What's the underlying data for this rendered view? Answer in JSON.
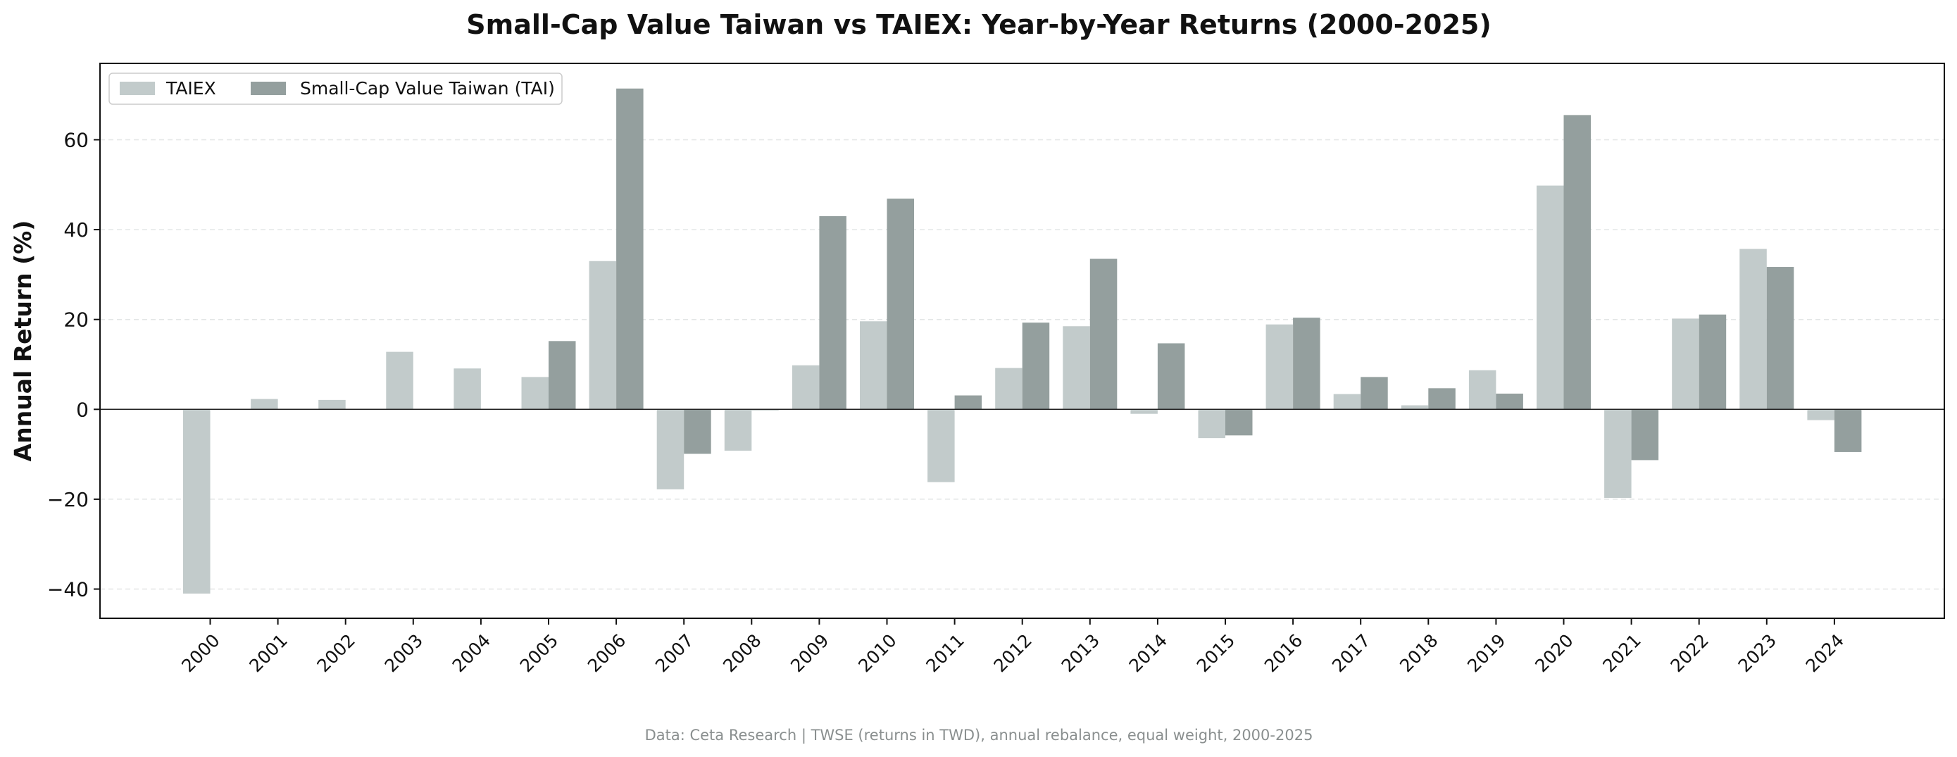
{
  "chart_data": {
    "type": "bar",
    "title": "Small-Cap Value Taiwan vs TAIEX: Year-by-Year Returns (2000-2025)",
    "xlabel": "",
    "ylabel": "Annual Return (%)",
    "ylim": [
      -46.5,
      77
    ],
    "yticks": [
      -40,
      -20,
      0,
      20,
      40,
      60
    ],
    "ytick_labels": [
      "−40",
      "−20",
      "0",
      "20",
      "40",
      "60"
    ],
    "grid": "horizontal dashed",
    "legend_position": "top-left",
    "categories": [
      "2000",
      "2001",
      "2002",
      "2003",
      "2004",
      "2005",
      "2006",
      "2007",
      "2008",
      "2009",
      "2010",
      "2011",
      "2012",
      "2013",
      "2014",
      "2015",
      "2016",
      "2017",
      "2018",
      "2019",
      "2020",
      "2021",
      "2022",
      "2023",
      "2024"
    ],
    "series": [
      {
        "name": "TAIEX",
        "color": "#c2cbcb",
        "values": [
          -41.0,
          2.3,
          2.1,
          12.8,
          9.1,
          7.2,
          33.0,
          -17.8,
          -9.2,
          9.8,
          19.6,
          -16.2,
          9.2,
          18.5,
          -1.0,
          -6.4,
          18.9,
          3.4,
          0.9,
          8.7,
          49.8,
          -19.7,
          20.2,
          35.7,
          -2.4
        ]
      },
      {
        "name": "Small-Cap Value Taiwan (TAI)",
        "color": "#949f9e",
        "values": [
          0,
          0,
          0,
          0,
          0,
          15.2,
          71.4,
          -9.9,
          -0.2,
          43.0,
          46.9,
          3.1,
          19.3,
          33.5,
          14.7,
          -5.8,
          20.4,
          7.2,
          4.7,
          3.5,
          65.5,
          -11.3,
          21.1,
          31.7,
          -9.5
        ]
      }
    ],
    "zero_line": true,
    "footer": "Data: Ceta Research | TWSE (returns in TWD), annual rebalance, equal weight, 2000-2025"
  }
}
